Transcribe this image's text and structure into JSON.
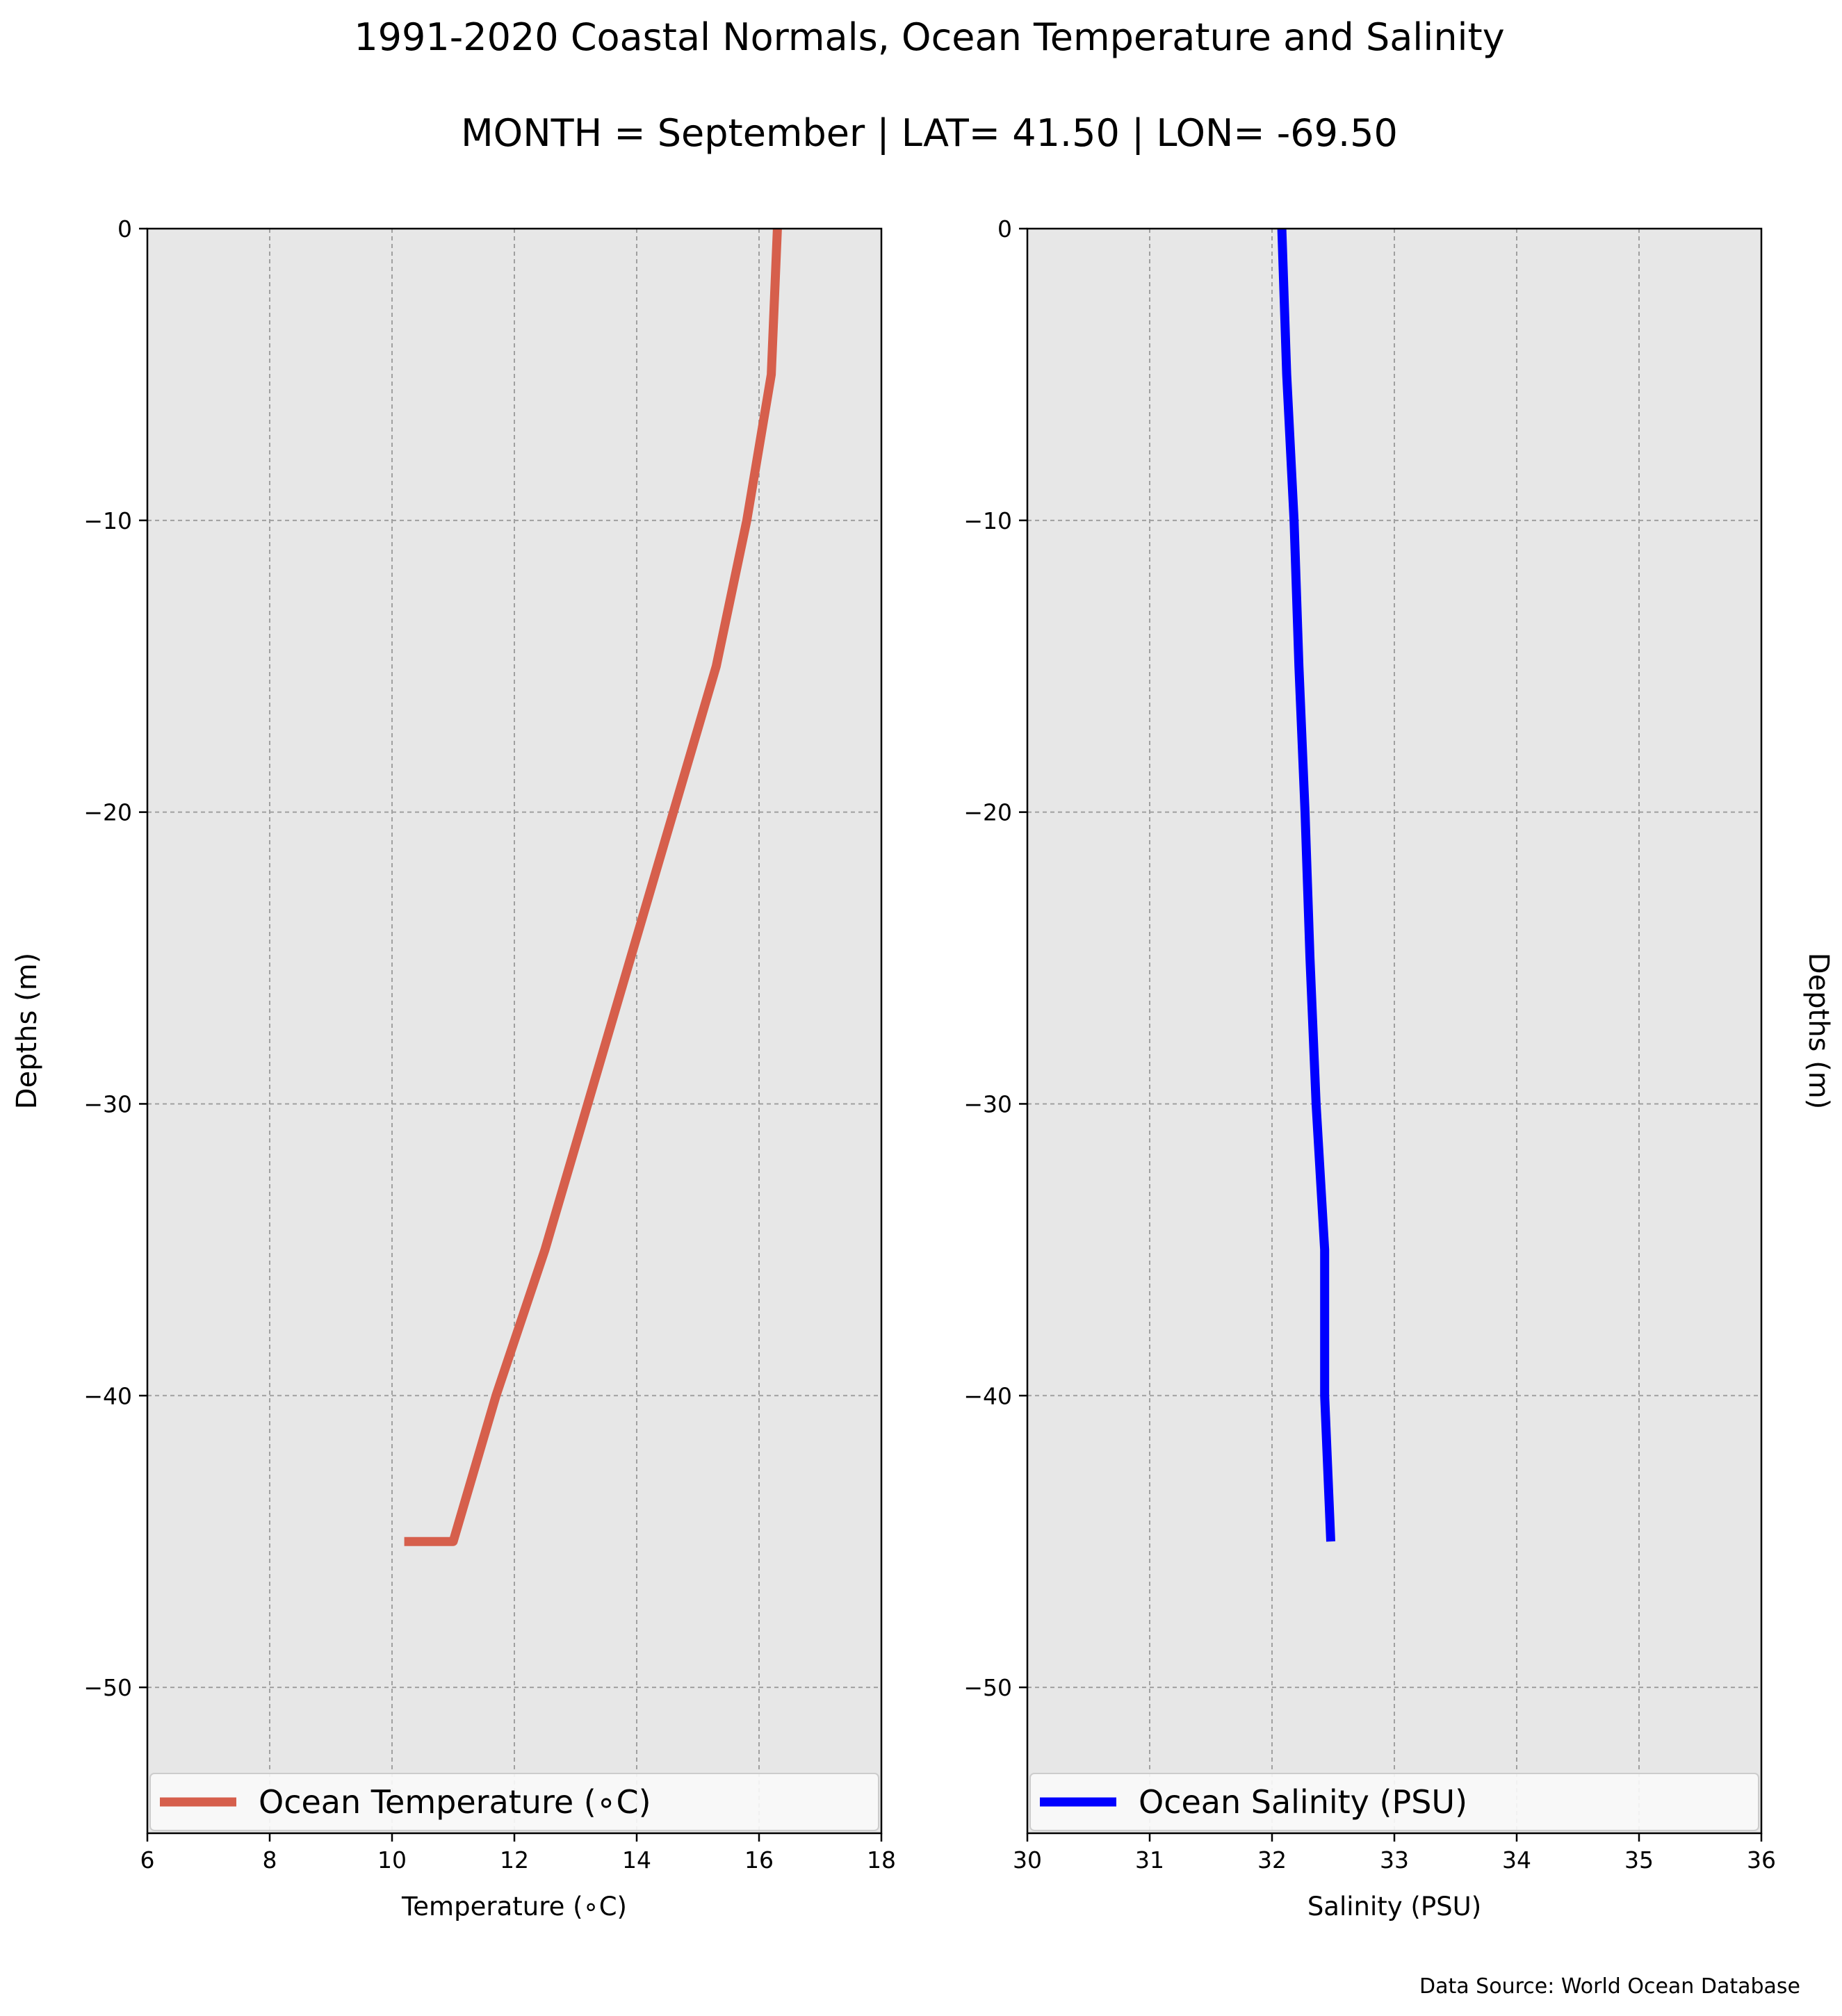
{
  "title": "1991-2020 Coastal Normals, Ocean Temperature and Salinity",
  "subtitle": "MONTH = September | LAT= 41.50 | LON= -69.50",
  "source": "Data Source: World Ocean Database",
  "chart_data": [
    {
      "type": "line",
      "xlabel": "Temperature (∘C)",
      "ylabel": "Depths (m)",
      "xlim": [
        6,
        18
      ],
      "ylim": [
        -55,
        0
      ],
      "xticks": [
        6,
        8,
        10,
        12,
        14,
        16,
        18
      ],
      "yticks": [
        0,
        -10,
        -20,
        -30,
        -40,
        -50
      ],
      "ytick_labels": [
        "0",
        "−10",
        "−20",
        "−30",
        "−40",
        "−50"
      ],
      "grid": true,
      "legend_position": "bottom",
      "series": [
        {
          "name": "Ocean Temperature (∘C)",
          "color": "#d65f4c",
          "x": [
            16.3,
            16.2,
            15.8,
            15.3,
            14.6,
            13.9,
            13.2,
            12.5,
            11.7,
            11.0,
            10.2
          ],
          "y": [
            0,
            -5,
            -10,
            -15,
            -20,
            -25,
            -30,
            -35,
            -40,
            -45,
            -45
          ]
        }
      ]
    },
    {
      "type": "line",
      "xlabel": "Salinity (PSU)",
      "ylabel": "Depths (m)",
      "xlim": [
        30,
        36
      ],
      "ylim": [
        -55,
        0
      ],
      "xticks": [
        30,
        31,
        32,
        33,
        34,
        35,
        36
      ],
      "yticks": [
        0,
        -10,
        -20,
        -30,
        -40,
        -50
      ],
      "ytick_labels": [
        "0",
        "−10",
        "−20",
        "−30",
        "−40",
        "−50"
      ],
      "grid": true,
      "legend_position": "bottom",
      "series": [
        {
          "name": "Ocean Salinity (PSU)",
          "color": "#0000ff",
          "x": [
            32.08,
            32.12,
            32.18,
            32.22,
            32.27,
            32.31,
            32.36,
            32.43,
            32.43,
            32.48
          ],
          "y": [
            0,
            -5,
            -10,
            -15,
            -20,
            -25,
            -30,
            -35,
            -40,
            -45
          ]
        }
      ]
    }
  ]
}
